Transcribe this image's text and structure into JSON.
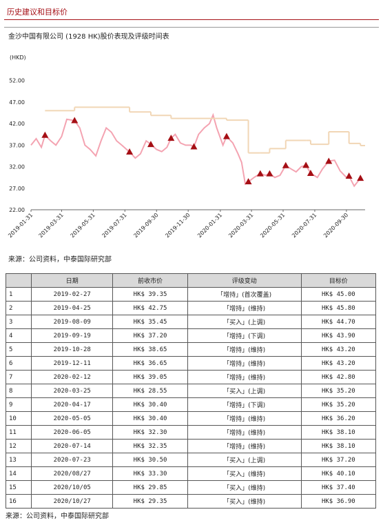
{
  "header": {
    "title": "历史建议和目标价"
  },
  "chart_data": {
    "type": "line",
    "title": "金沙中国有限公司 (1928 HK)股价表现及评级时间表",
    "y_label": "(HKD)",
    "ylim": [
      22,
      55
    ],
    "yticks": [
      {
        "value": 52,
        "label": "52.00"
      },
      {
        "value": 47,
        "label": "47.00"
      },
      {
        "value": 42,
        "label": "42.00"
      },
      {
        "value": 37,
        "label": "37.00"
      },
      {
        "value": 32,
        "label": "32.00"
      },
      {
        "value": 27,
        "label": "27.00"
      },
      {
        "value": 22,
        "label": "22.00"
      }
    ],
    "xlim": [
      "2019-01-31",
      "2020-11-05"
    ],
    "xticks": [
      "2019-01-31",
      "2019-03-31",
      "2019-05-31",
      "2019-07-31",
      "2019-09-30",
      "2019-11-30",
      "2020-01-31",
      "2020-03-31",
      "2020-05-31",
      "2020-07-31",
      "2020-09-30"
    ],
    "series": [
      {
        "kind": "line",
        "color": "#f4a3b1",
        "x": [
          "2019-01-31",
          "2019-02-10",
          "2019-02-20",
          "2019-02-27",
          "2019-03-10",
          "2019-03-20",
          "2019-03-31",
          "2019-04-10",
          "2019-04-25",
          "2019-05-05",
          "2019-05-15",
          "2019-05-25",
          "2019-06-05",
          "2019-06-15",
          "2019-06-25",
          "2019-07-05",
          "2019-07-15",
          "2019-07-25",
          "2019-08-09",
          "2019-08-20",
          "2019-08-30",
          "2019-09-10",
          "2019-09-19",
          "2019-09-30",
          "2019-10-10",
          "2019-10-20",
          "2019-10-28",
          "2019-11-05",
          "2019-11-15",
          "2019-11-25",
          "2019-12-05",
          "2019-12-11",
          "2019-12-20",
          "2019-12-31",
          "2020-01-10",
          "2020-01-17",
          "2020-01-24",
          "2020-02-05",
          "2020-02-12",
          "2020-02-24",
          "2020-03-05",
          "2020-03-12",
          "2020-03-19",
          "2020-03-25",
          "2020-04-05",
          "2020-04-17",
          "2020-04-27",
          "2020-05-05",
          "2020-05-15",
          "2020-05-25",
          "2020-06-05",
          "2020-06-15",
          "2020-06-25",
          "2020-07-05",
          "2020-07-14",
          "2020-07-23",
          "2020-08-05",
          "2020-08-15",
          "2020-08-27",
          "2020-09-07",
          "2020-09-18",
          "2020-09-30",
          "2020-10-05",
          "2020-10-15",
          "2020-10-27"
        ],
        "values": [
          37,
          38.5,
          36.5,
          39.3,
          38,
          37,
          39,
          43,
          42.7,
          41,
          37,
          36,
          34.5,
          38,
          41,
          40,
          38,
          37,
          35.4,
          34,
          35,
          38,
          37.2,
          36,
          35.5,
          36.5,
          38.6,
          39.5,
          37.5,
          37,
          37,
          36.6,
          39.5,
          41,
          42,
          44,
          41,
          37,
          39,
          37.5,
          35,
          33,
          28,
          28.5,
          29.5,
          30.4,
          30,
          30.4,
          29.5,
          30,
          32.3,
          31.5,
          30.8,
          32,
          32.3,
          30.5,
          29.5,
          31.5,
          33.3,
          33.5,
          31,
          29.5,
          29.8,
          27.5,
          29.3
        ]
      },
      {
        "kind": "step",
        "color": "#f1d6b5",
        "x": [
          "2019-02-27",
          "2019-04-25",
          "2019-08-09",
          "2019-09-19",
          "2019-10-28",
          "2019-12-11",
          "2020-02-12",
          "2020-03-25",
          "2020-04-17",
          "2020-05-05",
          "2020-06-05",
          "2020-07-14",
          "2020-07-23",
          "2020-08-27",
          "2020-10-05",
          "2020-10-27"
        ],
        "values": [
          45,
          45.8,
          44.7,
          43.9,
          43.2,
          43.2,
          42.8,
          35.2,
          35.2,
          36.2,
          38.1,
          38.1,
          37.2,
          40.1,
          37.4,
          36.9
        ]
      },
      {
        "kind": "marker",
        "color": "#a50f15",
        "x": [
          "2019-02-27",
          "2019-04-25",
          "2019-08-09",
          "2019-09-19",
          "2019-10-28",
          "2019-12-11",
          "2020-02-12",
          "2020-03-25",
          "2020-04-17",
          "2020-05-05",
          "2020-06-05",
          "2020-07-14",
          "2020-07-23",
          "2020-08-27",
          "2020-10-05",
          "2020-10-27"
        ],
        "values": [
          39.35,
          42.75,
          35.45,
          37.2,
          38.65,
          36.65,
          39.05,
          28.55,
          30.4,
          30.4,
          32.3,
          32.35,
          30.5,
          33.3,
          29.85,
          29.35
        ]
      }
    ]
  },
  "source_1": "来源：公司资料，中泰国际研究部",
  "table": {
    "header": [
      "日期",
      "前收市价",
      "评级变动",
      "目标价"
    ],
    "rows": [
      [
        "1",
        "2019-02-27",
        "HK$ 39.35",
        "「增持」(首次覆盖)",
        "HK$ 45.00"
      ],
      [
        "2",
        "2019-04-25",
        "HK$ 42.75",
        "「增持」(维持)",
        "HK$ 45.80"
      ],
      [
        "3",
        "2019-08-09",
        "HK$ 35.45",
        "「买入」(上调)",
        "HK$ 44.70"
      ],
      [
        "4",
        "2019-09-19",
        "HK$ 37.20",
        "「增持」(下调)",
        "HK$ 43.90"
      ],
      [
        "5",
        "2019-10-28",
        "HK$ 38.65",
        "「增持」(维持)",
        "HK$ 43.20"
      ],
      [
        "6",
        "2019-12-11",
        "HK$ 36.65",
        "「增持」(维持)",
        "HK$ 43.20"
      ],
      [
        "7",
        "2020-02-12",
        "HK$ 39.05",
        "「增持」(维持)",
        "HK$ 42.80"
      ],
      [
        "8",
        "2020-03-25",
        "HK$ 28.55",
        "「买入」(上调)",
        "HK$ 35.20"
      ],
      [
        "9",
        "2020-04-17",
        "HK$ 30.40",
        "「增持」(下调)",
        "HK$ 35.20"
      ],
      [
        "10",
        "2020-05-05",
        "HK$ 30.40",
        "「增持」(维持)",
        "HK$ 36.20"
      ],
      [
        "11",
        "2020-06-05",
        "HK$ 32.30",
        "「增持」(维持)",
        "HK$ 38.10"
      ],
      [
        "12",
        "2020-07-14",
        "HK$ 32.35",
        "「增持」(维持)",
        "HK$ 38.10"
      ],
      [
        "13",
        "2020-07-23",
        "HK$ 30.50",
        "「买入」(上调)",
        "HK$ 37.20"
      ],
      [
        "14",
        "2020/08/27",
        "HK$ 33.30",
        "「买入」(维持)",
        "HK$ 40.10"
      ],
      [
        "15",
        "2020/10/05",
        "HK$ 29.85",
        "「买入」(维持)",
        "HK$ 37.40"
      ],
      [
        "16",
        "2020/10/27",
        "HK$ 29.35",
        "「买入」(维持)",
        "HK$ 36.90"
      ]
    ]
  },
  "source_2": "来源：公司资料，中泰国际研究部"
}
